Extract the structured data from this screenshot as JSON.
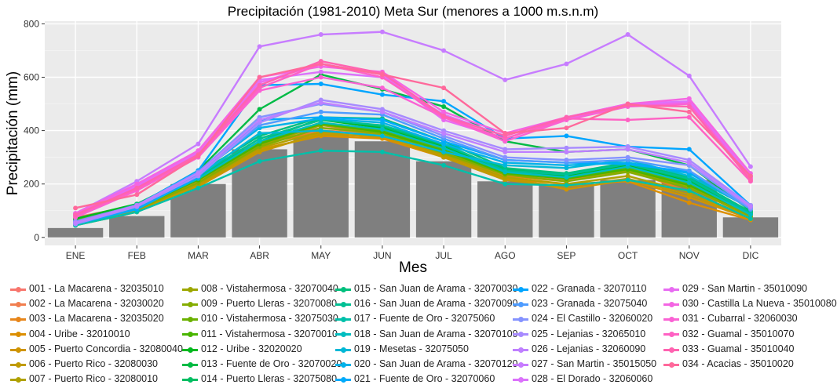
{
  "chart_data": {
    "type": "line",
    "title": "Precipitación (1981-2010) Meta Sur (menores a 1000 m.s.n.m)",
    "xlabel": "Mes",
    "ylabel": "Precipitación (mm)",
    "categories": [
      "ENE",
      "FEB",
      "MAR",
      "ABR",
      "MAY",
      "JUN",
      "JUL",
      "AGO",
      "SEP",
      "OCT",
      "NOV",
      "DIC"
    ],
    "ylim": [
      -30,
      810
    ],
    "yticks": [
      0,
      200,
      400,
      600,
      800
    ],
    "grid": true,
    "panel_background": "#ebebeb",
    "bar_color": "#7f7f7f",
    "bars": [
      35,
      80,
      200,
      330,
      380,
      360,
      285,
      210,
      200,
      215,
      215,
      75
    ],
    "legend_position": "bottom",
    "series": [
      {
        "name": "001 - La Macarena - 32035010",
        "color": "#F8766D",
        "values": [
          75,
          120,
          220,
          360,
          410,
          400,
          320,
          240,
          220,
          270,
          190,
          80
        ]
      },
      {
        "name": "002 - La Macarena - 32030020",
        "color": "#F17E4F",
        "values": [
          70,
          115,
          215,
          355,
          400,
          390,
          315,
          235,
          215,
          265,
          185,
          78
        ]
      },
      {
        "name": "003 - La Macarena - 32035020",
        "color": "#E7861B",
        "values": [
          60,
          110,
          210,
          350,
          395,
          385,
          310,
          230,
          210,
          255,
          170,
          75
        ]
      },
      {
        "name": "004 - Uribe - 32010010",
        "color": "#DB8E00",
        "values": [
          55,
          100,
          200,
          330,
          380,
          370,
          300,
          220,
          200,
          210,
          130,
          65
        ]
      },
      {
        "name": "005 - Puerto Concordia - 32080040",
        "color": "#CF9400",
        "values": [
          45,
          95,
          190,
          320,
          390,
          375,
          305,
          225,
          180,
          215,
          150,
          70
        ]
      },
      {
        "name": "006 - Puerto Rico - 32080030",
        "color": "#C09B00",
        "values": [
          50,
          100,
          195,
          325,
          385,
          380,
          300,
          215,
          190,
          220,
          160,
          72
        ]
      },
      {
        "name": "007 - Puerto Rico - 32080010",
        "color": "#B0A100",
        "values": [
          55,
          105,
          200,
          335,
          395,
          385,
          310,
          225,
          200,
          230,
          170,
          75
        ]
      },
      {
        "name": "008 - Vistahermosa - 32070040",
        "color": "#9DA700",
        "values": [
          60,
          110,
          215,
          345,
          420,
          395,
          320,
          240,
          220,
          250,
          190,
          85
        ]
      },
      {
        "name": "009 - Puerto Lleras - 32070080",
        "color": "#85AD00",
        "values": [
          55,
          105,
          205,
          340,
          410,
          390,
          315,
          235,
          210,
          245,
          185,
          80
        ]
      },
      {
        "name": "010 - Vistahermosa - 32075030",
        "color": "#6BB100",
        "values": [
          65,
          115,
          220,
          355,
          430,
          400,
          330,
          245,
          225,
          260,
          200,
          90
        ]
      },
      {
        "name": "011 - Vistahermosa - 32070010",
        "color": "#49B500",
        "values": [
          60,
          110,
          215,
          350,
          425,
          395,
          325,
          240,
          220,
          255,
          195,
          88
        ]
      },
      {
        "name": "012 - Uribe - 32020020",
        "color": "#00B81F",
        "values": [
          70,
          125,
          230,
          370,
          440,
          410,
          340,
          250,
          230,
          270,
          210,
          95
        ]
      },
      {
        "name": "013 - Fuente de Oro - 32070020",
        "color": "#00BB45",
        "values": [
          60,
          120,
          250,
          480,
          610,
          555,
          490,
          360,
          320,
          330,
          270,
          100
        ]
      },
      {
        "name": "014 - Puerto Lleras - 32075080",
        "color": "#00BE62",
        "values": [
          55,
          110,
          225,
          360,
          445,
          415,
          345,
          255,
          235,
          275,
          215,
          92
        ]
      },
      {
        "name": "015 - San Juan de Arama - 32070030",
        "color": "#00BF7D",
        "values": [
          50,
          125,
          240,
          380,
          450,
          445,
          360,
          260,
          240,
          280,
          225,
          95
        ]
      },
      {
        "name": "016 - San Juan de Arama - 32070090",
        "color": "#00C094",
        "values": [
          55,
          115,
          230,
          370,
          440,
          420,
          350,
          250,
          235,
          275,
          220,
          90
        ]
      },
      {
        "name": "017 - Fuente de Oro - 32075060",
        "color": "#00C0AA",
        "values": [
          45,
          95,
          185,
          285,
          325,
          320,
          270,
          200,
          195,
          215,
          175,
          70
        ]
      },
      {
        "name": "018 - San Juan de Arama - 32070100",
        "color": "#00BDC0",
        "values": [
          50,
          110,
          220,
          360,
          430,
          405,
          335,
          245,
          225,
          265,
          205,
          85
        ]
      },
      {
        "name": "019 - Mesetas - 32075050",
        "color": "#00B8D6",
        "values": [
          60,
          110,
          230,
          390,
          400,
          380,
          320,
          270,
          260,
          290,
          230,
          110
        ]
      },
      {
        "name": "020 - San Juan de Arama - 32070120",
        "color": "#00B2E9",
        "values": [
          55,
          120,
          240,
          410,
          445,
          430,
          350,
          280,
          270,
          280,
          240,
          115
        ]
      },
      {
        "name": "021 - Fuente de Oro - 32070060",
        "color": "#00ABFB",
        "values": [
          50,
          105,
          225,
          440,
          450,
          440,
          360,
          290,
          280,
          275,
          245,
          110
        ]
      },
      {
        "name": "022 - Granada - 32070110",
        "color": "#00A5FF",
        "values": [
          60,
          120,
          250,
          570,
          575,
          535,
          510,
          370,
          380,
          340,
          330,
          120
        ]
      },
      {
        "name": "023 - Granada - 32075040",
        "color": "#4E9CFF",
        "values": [
          55,
          115,
          235,
          420,
          470,
          460,
          370,
          290,
          280,
          290,
          250,
          105
        ]
      },
      {
        "name": "024 - El Castillo - 32060020",
        "color": "#8593FF",
        "values": [
          60,
          120,
          245,
          450,
          500,
          470,
          380,
          300,
          290,
          300,
          270,
          110
        ]
      },
      {
        "name": "025 - Lejanias - 32065010",
        "color": "#A78AFF",
        "values": [
          50,
          115,
          230,
          430,
          515,
          480,
          400,
          330,
          335,
          340,
          290,
          120
        ]
      },
      {
        "name": "026 - Lejanias - 32060090",
        "color": "#BF80FF",
        "values": [
          55,
          120,
          240,
          440,
          505,
          470,
          390,
          320,
          320,
          330,
          280,
          115
        ]
      },
      {
        "name": "027 - San Martin - 35015050",
        "color": "#C77CFF",
        "values": [
          90,
          210,
          350,
          715,
          760,
          770,
          700,
          590,
          650,
          760,
          605,
          265
        ]
      },
      {
        "name": "028 - El Dorado - 32060060",
        "color": "#DB72FB",
        "values": [
          80,
          195,
          320,
          590,
          620,
          600,
          460,
          380,
          450,
          500,
          510,
          230
        ]
      },
      {
        "name": "029 - San Martin - 35010090",
        "color": "#E86BF2",
        "values": [
          85,
          190,
          315,
          580,
          650,
          610,
          440,
          370,
          445,
          495,
          505,
          225
        ]
      },
      {
        "name": "030 - Castilla La Nueva - 35010080",
        "color": "#F465E3",
        "values": [
          90,
          200,
          325,
          600,
          640,
          620,
          470,
          390,
          450,
          500,
          520,
          240
        ]
      },
      {
        "name": "031 - Cubarral - 32060030",
        "color": "#FA62D4",
        "values": [
          75,
          175,
          300,
          550,
          600,
          560,
          450,
          360,
          440,
          490,
          500,
          220
        ]
      },
      {
        "name": "032 - Guamal - 35010070",
        "color": "#FF61C3",
        "values": [
          80,
          180,
          305,
          560,
          650,
          600,
          450,
          370,
          445,
          440,
          450,
          210
        ]
      },
      {
        "name": "033 - Guamal - 35010040",
        "color": "#FF63B0",
        "values": [
          85,
          185,
          310,
          570,
          660,
          615,
          455,
          380,
          450,
          495,
          490,
          215
        ]
      },
      {
        "name": "034 - Acacias - 35010020",
        "color": "#FF699B",
        "values": [
          110,
          160,
          305,
          600,
          650,
          610,
          560,
          390,
          410,
          500,
          470,
          230
        ]
      }
    ]
  }
}
